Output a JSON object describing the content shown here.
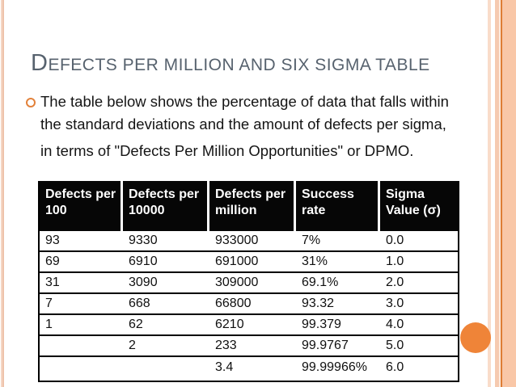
{
  "slide": {
    "title": {
      "lead": "D",
      "rest": "EFECTS PER MILLION AND SIX SIGMA TABLE",
      "full": "Defects per million and six sigma table"
    },
    "bullet": {
      "lines": [
        "The table below shows the percentage of data that falls within",
        "the standard deviations and the amount of defects per sigma,",
        "in terms of \"Defects Per Million Opportunities\" or DPMO."
      ]
    },
    "table": {
      "headers": [
        {
          "line1": "Defects per",
          "line2": "100"
        },
        {
          "line1": "Defects per",
          "line2": "10000"
        },
        {
          "line1": "Defects per",
          "line2": "million"
        },
        {
          "line1": "Success",
          "line2": "rate"
        },
        {
          "line1": "Sigma",
          "line2": "Value (σ)"
        }
      ],
      "rows": [
        [
          "93",
          "9330",
          "933000",
          "7%",
          "0.0"
        ],
        [
          "69",
          "6910",
          "691000",
          "31%",
          "1.0"
        ],
        [
          "31",
          "3090",
          "309000",
          "69.1%",
          "2.0"
        ],
        [
          "7",
          "668",
          "66800",
          "93.32",
          "3.0"
        ],
        [
          "1",
          "62",
          "6210",
          "99.379",
          "4.0"
        ],
        [
          "",
          "2",
          "233",
          "99.9767",
          "5.0"
        ],
        [
          "",
          "",
          "3.4",
          "99.99966%",
          "6.0"
        ]
      ]
    },
    "colors": {
      "accent_orange": "#ef8438",
      "bullet_ring_orange": "#e2813a",
      "title_gray": "#57626e",
      "header_bg": "#060606",
      "header_text": "#ffffff",
      "edge_peach": "#f9c7a7",
      "edge_line_orange": "#de7e35",
      "body_text": "#151515"
    }
  }
}
